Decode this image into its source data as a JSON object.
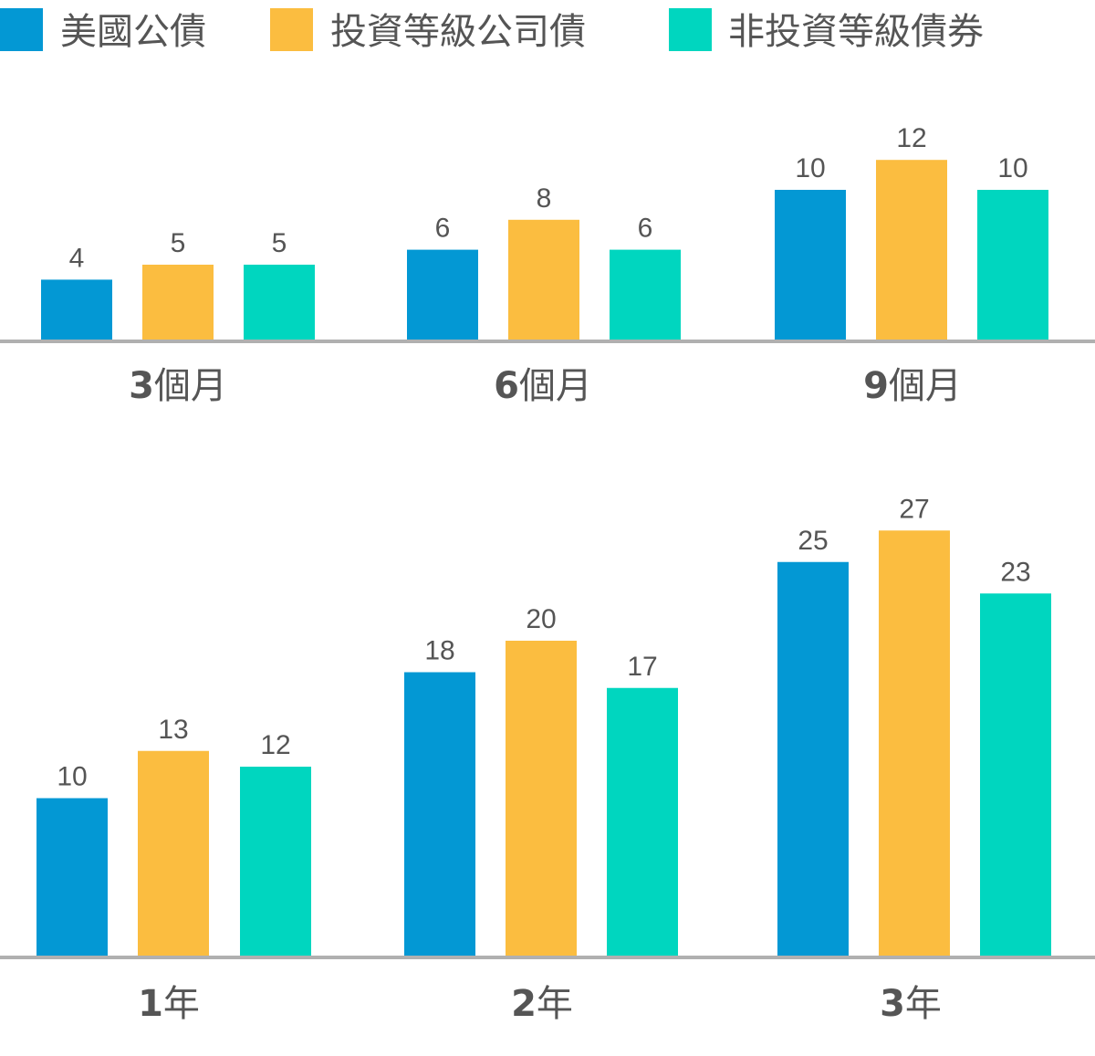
{
  "colors": {
    "treasury": "#0398d4",
    "investment_grade": "#fbbd40",
    "non_investment_grade": "#00d6bf"
  },
  "legend": [
    {
      "label": "美國公債",
      "color": "#0398d4"
    },
    {
      "label": "投資等級公司債",
      "color": "#fbbd40"
    },
    {
      "label": "非投資等級債券",
      "color": "#00d6bf"
    }
  ],
  "chart_data": [
    {
      "type": "bar",
      "categories": [
        "3個月",
        "6個月",
        "9個月"
      ],
      "series": [
        {
          "name": "美國公債",
          "values": [
            4,
            6,
            10
          ]
        },
        {
          "name": "投資等級公司債",
          "values": [
            5,
            8,
            12
          ]
        },
        {
          "name": "非投資等級債券",
          "values": [
            5,
            6,
            10
          ]
        }
      ],
      "legend_position": "top-left",
      "grid": false
    },
    {
      "type": "bar",
      "categories": [
        "1年",
        "2年",
        "3年"
      ],
      "series": [
        {
          "name": "美國公債",
          "values": [
            10,
            18,
            25
          ]
        },
        {
          "name": "投資等級公司債",
          "values": [
            13,
            20,
            27
          ]
        },
        {
          "name": "非投資等級債券",
          "values": [
            12,
            17,
            23
          ]
        }
      ],
      "grid": false
    }
  ]
}
